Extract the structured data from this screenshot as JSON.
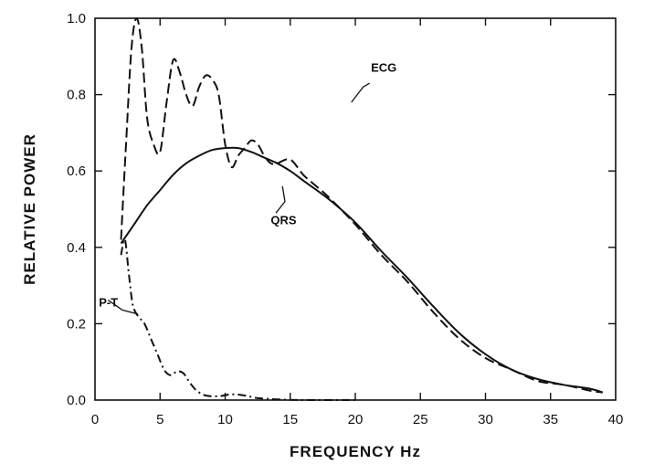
{
  "chart_data": {
    "type": "line",
    "title": "",
    "xlabel": "FREQUENCY   Hz",
    "ylabel": "RELATIVE POWER",
    "xlim": [
      0,
      40
    ],
    "ylim": [
      0,
      1.0
    ],
    "x_ticks": [
      0,
      5,
      10,
      15,
      20,
      25,
      30,
      35,
      40
    ],
    "y_ticks": [
      0.0,
      0.2,
      0.4,
      0.6,
      0.8,
      1.0
    ],
    "x_tick_labels": [
      "0",
      "5",
      "10",
      "15",
      "20",
      "25",
      "30",
      "35",
      "40"
    ],
    "y_tick_labels": [
      "0.0",
      "0.2",
      "0.4",
      "0.6",
      "0.8",
      "1.0"
    ],
    "grid": false,
    "series": [
      {
        "name": "ECG",
        "style": "dashed",
        "color": "#111111",
        "x": [
          2.0,
          2.4,
          2.8,
          3.2,
          3.6,
          4.0,
          4.5,
          5.0,
          5.5,
          6.0,
          6.5,
          7.0,
          7.5,
          8.0,
          8.5,
          9.0,
          9.5,
          10.0,
          10.5,
          11.0,
          11.5,
          12.0,
          12.5,
          13.0,
          13.5,
          14.0,
          15.0,
          16.0,
          17.0,
          18.0,
          20.0,
          22.0,
          24.0,
          26.0,
          28.0,
          30.0,
          32.0,
          34.0,
          36.0,
          38.0,
          39.0
        ],
        "y": [
          0.42,
          0.68,
          0.92,
          1.0,
          0.92,
          0.74,
          0.67,
          0.65,
          0.78,
          0.89,
          0.86,
          0.8,
          0.77,
          0.82,
          0.85,
          0.84,
          0.8,
          0.67,
          0.61,
          0.64,
          0.66,
          0.68,
          0.67,
          0.64,
          0.62,
          0.62,
          0.63,
          0.59,
          0.56,
          0.53,
          0.46,
          0.38,
          0.31,
          0.23,
          0.16,
          0.11,
          0.08,
          0.05,
          0.04,
          0.025,
          0.02
        ]
      },
      {
        "name": "QRS",
        "style": "solid",
        "color": "#111111",
        "x": [
          2.0,
          3.0,
          4.0,
          5.0,
          6.0,
          7.0,
          8.0,
          9.0,
          10.0,
          11.0,
          12.0,
          13.0,
          14.0,
          15.0,
          16.0,
          18.0,
          20.0,
          22.0,
          24.0,
          26.0,
          28.0,
          30.0,
          32.0,
          34.0,
          36.0,
          38.0,
          39.0
        ],
        "y": [
          0.41,
          0.46,
          0.51,
          0.55,
          0.59,
          0.62,
          0.64,
          0.655,
          0.66,
          0.66,
          0.65,
          0.635,
          0.62,
          0.6,
          0.575,
          0.525,
          0.465,
          0.39,
          0.32,
          0.245,
          0.175,
          0.12,
          0.08,
          0.055,
          0.04,
          0.03,
          0.02
        ]
      },
      {
        "name": "P-T",
        "style": "dashdot",
        "color": "#111111",
        "x": [
          2.0,
          2.3,
          2.6,
          2.9,
          3.3,
          3.8,
          4.3,
          4.8,
          5.3,
          5.8,
          6.3,
          6.8,
          7.3,
          7.8,
          8.5,
          9.5,
          10.5,
          11.5,
          12.5,
          14.0,
          16.0,
          20.0
        ],
        "y": [
          0.38,
          0.42,
          0.33,
          0.25,
          0.22,
          0.2,
          0.16,
          0.12,
          0.08,
          0.065,
          0.075,
          0.07,
          0.045,
          0.025,
          0.012,
          0.01,
          0.015,
          0.012,
          0.005,
          0.002,
          0.0,
          0.0
        ]
      }
    ]
  }
}
